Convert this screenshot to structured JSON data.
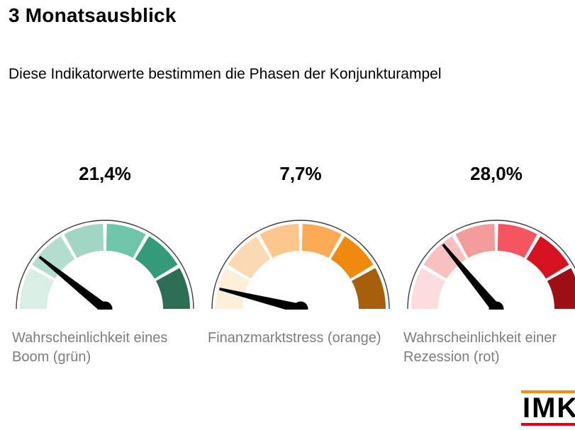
{
  "header": {
    "title": "3 Monatsausblick",
    "subtitle": "Diese Indikatorwerte bestimmen die Phasen der Konjunkturampel"
  },
  "chart_data": {
    "type": "gauge",
    "title": "3 Monatsausblick",
    "subtitle": "Diese Indikatorwerte bestimmen die Phasen der Konjunkturampel",
    "layout": {
      "orientation": "semicircle",
      "segments_per_gauge": 6,
      "needle_color": "#000000",
      "arc_outline_color": "#3d3d3d"
    },
    "gauges": [
      {
        "value_label": "21,4%",
        "value_percent": 21.4,
        "axis_range": [
          0,
          100
        ],
        "label": "Wahrscheinlichkeit eines Boom (grün)",
        "segment_colors": [
          "#d9eee5",
          "#b3ddce",
          "#a0d6c3",
          "#6ec5a9",
          "#339b7a",
          "#2b6e54"
        ]
      },
      {
        "value_label": "7,7%",
        "value_percent": 7.7,
        "axis_range": [
          0,
          100
        ],
        "label": "Finanzmarktstress (orange)",
        "segment_colors": [
          "#fdeeda",
          "#fbd9b3",
          "#fcc78d",
          "#fbaa55",
          "#f08a0f",
          "#a85f0c"
        ]
      },
      {
        "value_label": "28,0%",
        "value_percent": 28.0,
        "axis_range": [
          0,
          100
        ],
        "label": "Wahrscheinlichkeit einer Rezession (rot)",
        "segment_colors": [
          "#fcdcdc",
          "#f8c0c0",
          "#f49b9b",
          "#f4555e",
          "#d61120",
          "#9d0e15"
        ]
      }
    ]
  },
  "logo": {
    "text": "IMK",
    "top_bar_color": "#f39200",
    "bottom_bar_color": "#e2001a"
  }
}
